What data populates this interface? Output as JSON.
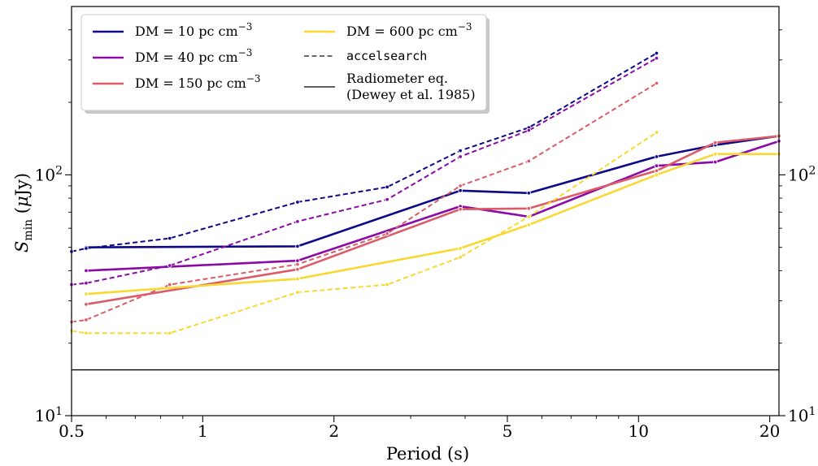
{
  "chart_data": {
    "type": "line",
    "x_scale": "log",
    "y_scale": "log",
    "xlim": [
      0.5,
      21
    ],
    "ylim": [
      10,
      500
    ],
    "xlabel": "Period (s)",
    "ylabel": "S_min (μJy)",
    "x_ticks": [
      {
        "value": 0.5,
        "label": "0.5"
      },
      {
        "value": 1,
        "label": "1"
      },
      {
        "value": 2,
        "label": "2"
      },
      {
        "value": 5,
        "label": "5"
      },
      {
        "value": 10,
        "label": "10"
      },
      {
        "value": 20,
        "label": "20"
      }
    ],
    "y_ticks": [
      {
        "value": 10,
        "base": "10",
        "exp": "1"
      },
      {
        "value": 100,
        "base": "10",
        "exp": "2"
      }
    ],
    "colors": {
      "dm10": "#0d0887",
      "dm40": "#8b0aa5",
      "dm150": "#db5c68",
      "dm600": "#f8d831",
      "radiometer": "#000000",
      "accel": "#555555"
    },
    "legend": {
      "position": "top-left",
      "entries": [
        {
          "key": "dm10",
          "label": "DM = 10 pc cm",
          "sup": "−3",
          "style": "solid"
        },
        {
          "key": "dm40",
          "label": "DM = 40 pc cm",
          "sup": "−3",
          "style": "solid"
        },
        {
          "key": "dm150",
          "label": "DM = 150 pc cm",
          "sup": "−3",
          "style": "solid"
        },
        {
          "key": "dm600",
          "label": "DM = 600 pc cm",
          "sup": "−3",
          "style": "solid"
        },
        {
          "key": "accel",
          "label": "accelsearch",
          "style": "dashed"
        },
        {
          "key": "radiometer",
          "label": "Radiometer eq.",
          "label2": "(Dewey et al. 1985)",
          "style": "solid"
        }
      ]
    },
    "radiometer_level": 15.5,
    "series": [
      {
        "key": "dm10",
        "kind": "radiometer-solid",
        "x": [
          0.54,
          1.65,
          3.9,
          5.6,
          11,
          15,
          21
        ],
        "y": [
          50,
          50.5,
          86,
          84,
          119,
          133,
          145
        ]
      },
      {
        "key": "dm10",
        "kind": "accelsearch-dashed",
        "x": [
          0.5,
          0.54,
          0.84,
          1.65,
          2.65,
          3.9,
          5.6,
          11
        ],
        "y": [
          48,
          49.5,
          54.5,
          77,
          89,
          126,
          157,
          320
        ]
      },
      {
        "key": "dm40",
        "kind": "radiometer-solid",
        "x": [
          0.54,
          1.65,
          3.9,
          5.6,
          11,
          15,
          21
        ],
        "y": [
          40,
          44,
          74,
          67,
          109,
          113,
          138
        ]
      },
      {
        "key": "dm40",
        "kind": "accelsearch-dashed",
        "x": [
          0.5,
          0.54,
          0.84,
          1.65,
          2.65,
          3.9,
          5.6,
          11
        ],
        "y": [
          35,
          35.5,
          42,
          64,
          79,
          119,
          153,
          305
        ]
      },
      {
        "key": "dm150",
        "kind": "radiometer-solid",
        "x": [
          0.54,
          1.65,
          3.9,
          5.6,
          11,
          15,
          21
        ],
        "y": [
          29,
          40.5,
          72,
          72.5,
          104,
          136,
          145
        ]
      },
      {
        "key": "dm150",
        "kind": "accelsearch-dashed",
        "x": [
          0.5,
          0.54,
          0.84,
          1.65,
          2.65,
          3.9,
          5.6,
          11
        ],
        "y": [
          24.5,
          25,
          35,
          42.5,
          57,
          90,
          114,
          240
        ]
      },
      {
        "key": "dm600",
        "kind": "radiometer-solid",
        "x": [
          0.54,
          1.65,
          3.9,
          5.6,
          11,
          15,
          21
        ],
        "y": [
          32,
          37,
          49.5,
          62,
          100,
          122,
          122
        ]
      },
      {
        "key": "dm600",
        "kind": "accelsearch-dashed",
        "x": [
          0.5,
          0.54,
          0.84,
          1.65,
          2.65,
          3.9,
          5.6,
          11
        ],
        "y": [
          22.5,
          22,
          22,
          32.5,
          35,
          45.5,
          67,
          150
        ]
      }
    ]
  }
}
